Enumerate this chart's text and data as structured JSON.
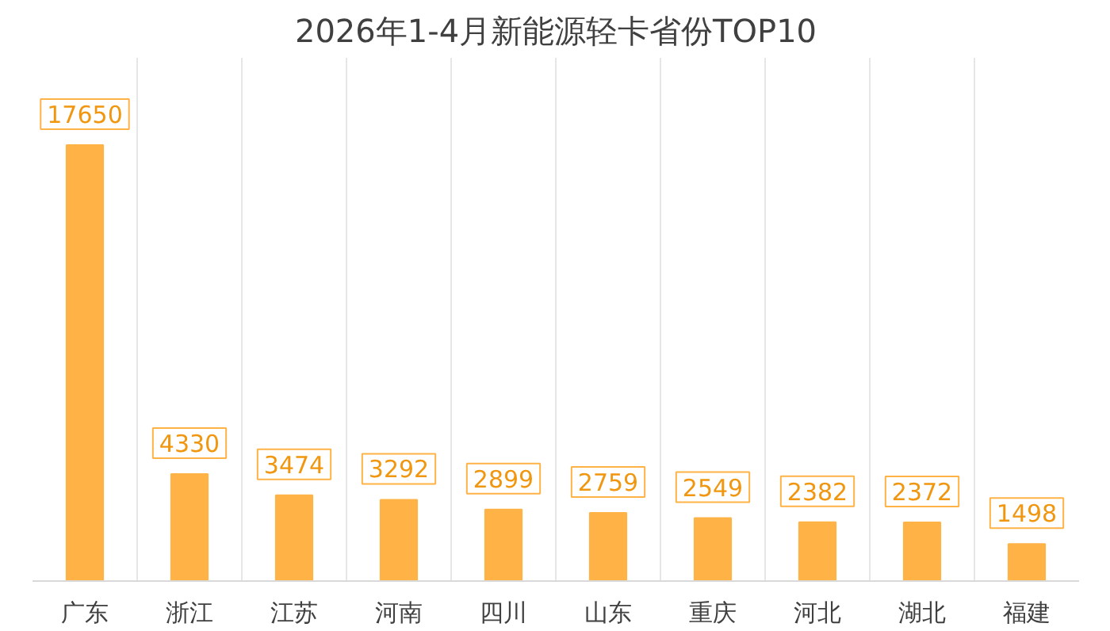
{
  "chart_data": {
    "type": "bar",
    "title": "2026年1-4月新能源轻卡省份TOP10",
    "categories": [
      "广东",
      "浙江",
      "江苏",
      "河南",
      "四川",
      "山东",
      "重庆",
      "河北",
      "湖北",
      "福建"
    ],
    "values": [
      17650,
      4330,
      3474,
      3292,
      2899,
      2759,
      2549,
      2382,
      2372,
      1498
    ],
    "color": "#ffb347",
    "data_labels": true,
    "grid": "x"
  }
}
